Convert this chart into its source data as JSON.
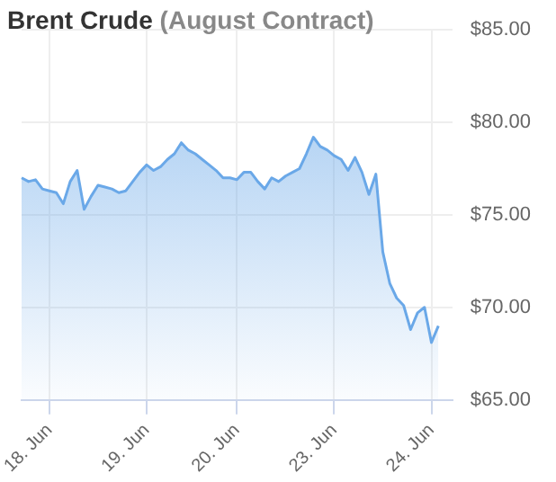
{
  "chart_data": {
    "type": "area",
    "title": "Brent Crude",
    "subtitle": "(August Contract)",
    "categories": [
      null,
      null,
      null,
      null,
      "18. Jun",
      null,
      null,
      null,
      null,
      null,
      null,
      null,
      null,
      null,
      null,
      null,
      null,
      null,
      "19. Jun",
      null,
      null,
      null,
      null,
      null,
      null,
      null,
      null,
      null,
      null,
      null,
      null,
      "20. Jun",
      null,
      null,
      null,
      null,
      null,
      null,
      null,
      null,
      null,
      null,
      null,
      null,
      null,
      "23. Jun",
      null,
      null,
      null,
      null,
      null,
      null,
      null,
      null,
      null,
      null,
      null,
      null,
      null,
      "24. Jun",
      null,
      null,
      null
    ],
    "series": [
      {
        "color": "#6aa8e8",
        "values": [
          77.0,
          76.8,
          76.9,
          76.4,
          76.3,
          76.2,
          75.6,
          76.8,
          77.4,
          75.3,
          76.0,
          76.6,
          76.5,
          76.4,
          76.2,
          76.3,
          76.8,
          77.3,
          77.7,
          77.4,
          77.6,
          78.0,
          78.3,
          78.9,
          78.5,
          78.3,
          78.0,
          77.7,
          77.4,
          77.0,
          77.0,
          76.9,
          77.3,
          77.3,
          76.8,
          76.4,
          77.0,
          76.8,
          77.1,
          77.3,
          77.5,
          78.3,
          79.2,
          78.7,
          78.5,
          78.2,
          78.0,
          77.4,
          78.1,
          77.3,
          76.1,
          77.2,
          73.0,
          71.3,
          70.5,
          70.1,
          68.8,
          69.7,
          70.0,
          68.1,
          69.0,
          null,
          null
        ]
      }
    ],
    "ylim": [
      65,
      85
    ],
    "yticks": [
      {
        "value": 65,
        "label": "$65.00"
      },
      {
        "value": 70,
        "label": "$70.00"
      },
      {
        "value": 75,
        "label": "$75.00"
      },
      {
        "value": 80,
        "label": "$80.00"
      },
      {
        "value": 85,
        "label": "$85.00"
      }
    ],
    "grid": true,
    "legend": false
  }
}
